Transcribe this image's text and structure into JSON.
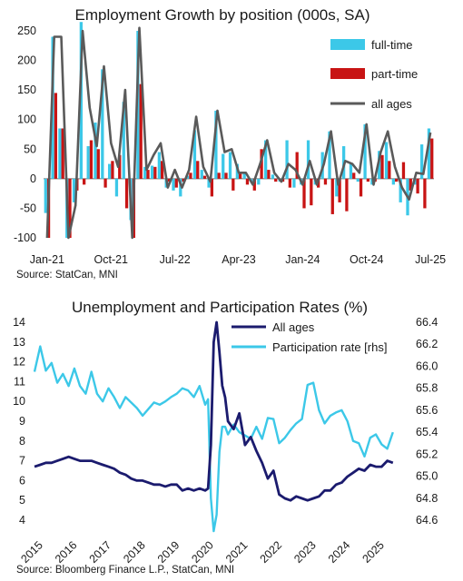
{
  "chart_data": [
    {
      "type": "bar",
      "title": "Employment Growth by position (000s, SA)",
      "source": "Source: StatCan, MNI",
      "ylim": [
        -100,
        250
      ],
      "y_ticks": [
        "250",
        "200",
        "150",
        "100",
        "50",
        "0",
        "-50",
        "-100"
      ],
      "x_tick_labels": [
        "Jan-21",
        "Oct-21",
        "Jul-22",
        "Apr-23",
        "Jan-24",
        "Oct-24",
        "Jul-25"
      ],
      "legend_position": "top-right",
      "x": [
        "Jan-21",
        "Feb-21",
        "Mar-21",
        "Apr-21",
        "May-21",
        "Jun-21",
        "Jul-21",
        "Aug-21",
        "Sep-21",
        "Oct-21",
        "Nov-21",
        "Dec-21",
        "Jan-22",
        "Feb-22",
        "Mar-22",
        "Apr-22",
        "May-22",
        "Jun-22",
        "Jul-22",
        "Aug-22",
        "Sep-22",
        "Oct-22",
        "Nov-22",
        "Dec-22",
        "Jan-23",
        "Feb-23",
        "Mar-23",
        "Apr-23",
        "May-23",
        "Jun-23",
        "Jul-23",
        "Aug-23",
        "Sep-23",
        "Oct-23",
        "Nov-23",
        "Dec-23",
        "Jan-24",
        "Feb-24",
        "Mar-24",
        "Apr-24",
        "May-24",
        "Jun-24",
        "Jul-24",
        "Aug-24",
        "Sep-24",
        "Oct-24",
        "Nov-24",
        "Dec-24",
        "Jan-25",
        "Feb-25",
        "Mar-25",
        "Apr-25",
        "May-25",
        "Jun-25",
        "Jul-25"
      ],
      "series": [
        {
          "name": "full-time",
          "type": "bar",
          "color": "#3cc8e8",
          "values": [
            -58,
            240,
            85,
            -100,
            -40,
            265,
            55,
            95,
            185,
            25,
            -30,
            130,
            -70,
            250,
            20,
            22,
            45,
            -15,
            -20,
            -30,
            5,
            82,
            15,
            -15,
            115,
            42,
            45,
            25,
            10,
            -5,
            -10,
            65,
            7,
            -5,
            65,
            -15,
            -10,
            65,
            -10,
            45,
            80,
            -30,
            55,
            25,
            -5,
            92,
            -10,
            47,
            62,
            -10,
            -40,
            -62,
            -10,
            58,
            85
          ]
        },
        {
          "name": "part-time",
          "type": "bar",
          "color": "#c81414",
          "values": [
            -100,
            145,
            85,
            -100,
            -20,
            -10,
            65,
            50,
            -15,
            30,
            40,
            -50,
            -100,
            160,
            15,
            20,
            30,
            -5,
            -15,
            -5,
            10,
            30,
            5,
            -30,
            10,
            10,
            -20,
            10,
            -10,
            -20,
            50,
            15,
            -5,
            -5,
            -15,
            45,
            -50,
            -45,
            -15,
            -10,
            -60,
            -40,
            -55,
            10,
            -30,
            -5,
            -5,
            40,
            30,
            -5,
            28,
            -20,
            -25,
            -50,
            68
          ]
        },
        {
          "name": "all ages",
          "type": "line",
          "color": "#5a5a5a",
          "values": [
            -100,
            240,
            240,
            -100,
            -45,
            250,
            120,
            55,
            190,
            60,
            20,
            150,
            -100,
            255,
            15,
            40,
            60,
            -15,
            15,
            -15,
            15,
            105,
            20,
            -5,
            115,
            45,
            50,
            10,
            10,
            -10,
            25,
            65,
            10,
            -5,
            25,
            15,
            -10,
            30,
            -10,
            25,
            80,
            -10,
            30,
            25,
            10,
            92,
            -10,
            45,
            80,
            20,
            -15,
            -35,
            10,
            8,
            78
          ]
        }
      ]
    },
    {
      "type": "line",
      "title": "Unemployment and Participation Rates (%)",
      "source": "Source: Bloomberg Finance L.P., StatCan, MNI",
      "ylim": [
        4,
        14
      ],
      "y2lim": [
        64.6,
        66.4
      ],
      "y_ticks": [
        "14",
        "13",
        "12",
        "11",
        "10",
        "9",
        "8",
        "7",
        "6",
        "5",
        "4"
      ],
      "y2_ticks": [
        "66.4",
        "66.2",
        "66.0",
        "65.8",
        "65.6",
        "65.4",
        "65.2",
        "65.0",
        "64.8",
        "64.6"
      ],
      "x_tick_labels": [
        "2015",
        "2016",
        "2017",
        "2018",
        "2019",
        "2020",
        "2021",
        "2022",
        "2023",
        "2024",
        "2025"
      ],
      "legend_position": "top",
      "x": [
        "2015-01",
        "2015-03",
        "2015-05",
        "2015-07",
        "2015-09",
        "2015-11",
        "2016-01",
        "2016-03",
        "2016-05",
        "2016-07",
        "2016-09",
        "2016-11",
        "2017-01",
        "2017-03",
        "2017-05",
        "2017-07",
        "2017-09",
        "2017-11",
        "2018-01",
        "2018-03",
        "2018-05",
        "2018-07",
        "2018-09",
        "2018-11",
        "2019-01",
        "2019-03",
        "2019-05",
        "2019-07",
        "2019-09",
        "2019-11",
        "2020-01",
        "2020-02",
        "2020-03",
        "2020-04",
        "2020-05",
        "2020-06",
        "2020-07",
        "2020-08",
        "2020-09",
        "2020-11",
        "2021-01",
        "2021-03",
        "2021-05",
        "2021-07",
        "2021-09",
        "2021-11",
        "2022-01",
        "2022-03",
        "2022-05",
        "2022-07",
        "2022-09",
        "2022-11",
        "2023-01",
        "2023-03",
        "2023-05",
        "2023-07",
        "2023-09",
        "2023-11",
        "2024-01",
        "2024-03",
        "2024-05",
        "2024-07",
        "2024-09",
        "2024-11",
        "2025-01",
        "2025-03",
        "2025-05",
        "2025-07"
      ],
      "series": [
        {
          "name": "All ages",
          "axis": "left",
          "color": "#1b1b6e",
          "values": [
            6.7,
            6.8,
            6.9,
            6.9,
            7.0,
            7.1,
            7.2,
            7.1,
            7.0,
            7.0,
            7.0,
            6.9,
            6.8,
            6.7,
            6.6,
            6.4,
            6.3,
            6.1,
            6.0,
            6.0,
            5.9,
            5.8,
            5.8,
            5.7,
            5.8,
            5.8,
            5.5,
            5.6,
            5.5,
            5.6,
            5.5,
            5.6,
            7.8,
            13.0,
            14.0,
            12.5,
            10.8,
            10.2,
            9.0,
            8.6,
            9.4,
            7.8,
            8.2,
            7.5,
            6.9,
            6.1,
            6.5,
            5.3,
            5.1,
            5.0,
            5.2,
            5.1,
            5.0,
            5.1,
            5.2,
            5.5,
            5.5,
            5.8,
            5.9,
            6.2,
            6.4,
            6.6,
            6.5,
            6.8,
            6.7,
            6.7,
            7.0,
            6.9
          ]
        },
        {
          "name": "Participation rate [rhs]",
          "axis": "right",
          "color": "#3cc8e8",
          "values": [
            65.95,
            66.18,
            65.96,
            66.03,
            65.85,
            65.93,
            65.82,
            65.98,
            65.82,
            65.75,
            65.95,
            65.75,
            65.68,
            65.8,
            65.72,
            65.62,
            65.72,
            65.67,
            65.62,
            65.55,
            65.61,
            65.67,
            65.65,
            65.68,
            65.72,
            65.75,
            65.8,
            65.78,
            65.72,
            65.82,
            65.65,
            65.7,
            64.8,
            64.5,
            64.65,
            65.22,
            65.45,
            65.45,
            65.38,
            65.47,
            65.4,
            65.37,
            65.34,
            65.45,
            65.34,
            65.53,
            65.52,
            65.3,
            65.35,
            65.42,
            65.48,
            65.52,
            65.83,
            65.85,
            65.6,
            65.48,
            65.55,
            65.58,
            65.6,
            65.5,
            65.32,
            65.3,
            65.18,
            65.35,
            65.38,
            65.29,
            65.25,
            65.4
          ]
        }
      ]
    }
  ]
}
